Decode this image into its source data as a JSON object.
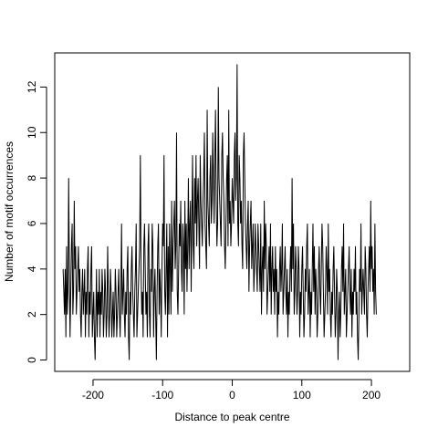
{
  "chart_data": {
    "type": "line",
    "title": "",
    "xlabel": "Distance to peak centre",
    "ylabel": "Number of motif occurrences",
    "xlim": [
      -255,
      255
    ],
    "ylim": [
      -0.5,
      13.5
    ],
    "xticks": [
      -200,
      -100,
      0,
      100,
      200
    ],
    "yticks": [
      0,
      2,
      4,
      6,
      8,
      10,
      12
    ],
    "grid": false,
    "legend": "none",
    "line_color": "#000000",
    "x_start": -243,
    "x_step": 1,
    "values": [
      4,
      3,
      2,
      4,
      1,
      5,
      2,
      3,
      8,
      4,
      1,
      3,
      5,
      6,
      2,
      3,
      7,
      4,
      5,
      2,
      3,
      4,
      5,
      3,
      4,
      2,
      1,
      3,
      4,
      2,
      3,
      4,
      1,
      3,
      2,
      4,
      5,
      1,
      3,
      2,
      4,
      5,
      1,
      2,
      3,
      1,
      0,
      2,
      4,
      1,
      3,
      2,
      4,
      1,
      3,
      2,
      4,
      3,
      1,
      2,
      4,
      3,
      1,
      2,
      5,
      3,
      1,
      2,
      4,
      3,
      1,
      2,
      3,
      1,
      2,
      4,
      3,
      1,
      2,
      3,
      4,
      2,
      1,
      3,
      6,
      2,
      3,
      4,
      2,
      1,
      3,
      2,
      4,
      5,
      1,
      0,
      3,
      2,
      4,
      5,
      3,
      2,
      1,
      3,
      4,
      6,
      1,
      2,
      3,
      4,
      5,
      9,
      4,
      2,
      3,
      1,
      5,
      6,
      4,
      2,
      3,
      1,
      5,
      6,
      2,
      1,
      4,
      3,
      6,
      5,
      1,
      3,
      4,
      2,
      0,
      3,
      5,
      6,
      2,
      4,
      3,
      1,
      4,
      6,
      5,
      9,
      3,
      2,
      4,
      6,
      1,
      5,
      2,
      6,
      4,
      2,
      7,
      3,
      5,
      6,
      7,
      4,
      5,
      10,
      3,
      2,
      4,
      6,
      5,
      7,
      4,
      3,
      6,
      5,
      2,
      7,
      4,
      6,
      3,
      5,
      8,
      4,
      6,
      7,
      3,
      6,
      9,
      5,
      4,
      8,
      6,
      9,
      5,
      7,
      8,
      6,
      4,
      9,
      7,
      6,
      5,
      7,
      8,
      10,
      6,
      5,
      4,
      11,
      7,
      6,
      5,
      8,
      9,
      6,
      7,
      10,
      8,
      6,
      9,
      11,
      7,
      5,
      6,
      12,
      8,
      7,
      6,
      5,
      9,
      10,
      8,
      7,
      5,
      4,
      6,
      8,
      9,
      5,
      11,
      6,
      7,
      5,
      6,
      8,
      7,
      6,
      9,
      10,
      7,
      8,
      13,
      6,
      5,
      9,
      8,
      6,
      7,
      5,
      4,
      9,
      10,
      8,
      6,
      5,
      4,
      6,
      7,
      3,
      5,
      6,
      7,
      4,
      5,
      6,
      3,
      4,
      6,
      5,
      4,
      3,
      6,
      5,
      4,
      3,
      6,
      2,
      4,
      5,
      3,
      7,
      4,
      6,
      5,
      2,
      3,
      4,
      5,
      3,
      6,
      2,
      4,
      5,
      3,
      4,
      2,
      5,
      3,
      4,
      1,
      3,
      2,
      4,
      5,
      3,
      4,
      6,
      2,
      3,
      4,
      5,
      3,
      2,
      4,
      1,
      3,
      2,
      4,
      5,
      3,
      8,
      4,
      6,
      2,
      3,
      5,
      4,
      2,
      3,
      5,
      4,
      1,
      3,
      2,
      4,
      5,
      3,
      1,
      2,
      4,
      3,
      5,
      6,
      2,
      3,
      4,
      1,
      3,
      2,
      4,
      6,
      3,
      5,
      2,
      4,
      3,
      1,
      2,
      4,
      5,
      3,
      2,
      4,
      6,
      5,
      3,
      1,
      2,
      3,
      5,
      4,
      2,
      6,
      3,
      4,
      2,
      1,
      3,
      2,
      4,
      5,
      3,
      1,
      2,
      4,
      3,
      0,
      2,
      3,
      1,
      2,
      4,
      5,
      3,
      6,
      2,
      3,
      4,
      1,
      2,
      3,
      4,
      5,
      3,
      2,
      4,
      1,
      3,
      2,
      4,
      3,
      5,
      2,
      3,
      1,
      0,
      2,
      4,
      3,
      6,
      2,
      3,
      4,
      3,
      2,
      5,
      4,
      2,
      1,
      3,
      4,
      5,
      3,
      7,
      4,
      5,
      3,
      4,
      2,
      6,
      3,
      2
    ]
  }
}
